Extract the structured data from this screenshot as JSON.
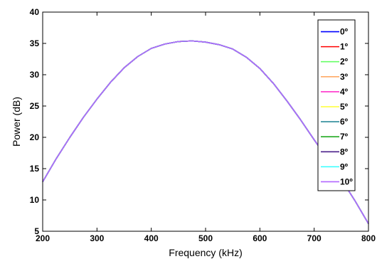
{
  "chart_data": {
    "type": "line",
    "title": "",
    "xlabel": "Frequency (kHz)",
    "ylabel": "Power (dB)",
    "xlim": [
      200,
      800
    ],
    "ylim": [
      5,
      40
    ],
    "xticks": [
      200,
      300,
      400,
      500,
      600,
      700,
      800
    ],
    "yticks": [
      5,
      10,
      15,
      20,
      25,
      30,
      35,
      40
    ],
    "grid": false,
    "legend_position": "top-right",
    "x": [
      200,
      225,
      250,
      275,
      300,
      325,
      350,
      375,
      400,
      425,
      450,
      475,
      500,
      525,
      550,
      575,
      600,
      625,
      650,
      675,
      700,
      725,
      750,
      775,
      800
    ],
    "series": [
      {
        "name": "0º",
        "color": "#0000ff",
        "values": [
          12.9,
          16.6,
          20.0,
          23.2,
          26.1,
          28.8,
          31.1,
          32.9,
          34.2,
          34.9,
          35.3,
          35.4,
          35.2,
          34.8,
          34.1,
          32.8,
          31.0,
          28.6,
          25.8,
          22.8,
          19.6,
          16.5,
          13.3,
          9.9,
          6.2
        ]
      },
      {
        "name": "1º",
        "color": "#ff0000",
        "values": [
          12.9,
          16.6,
          20.0,
          23.2,
          26.1,
          28.8,
          31.1,
          32.9,
          34.2,
          34.9,
          35.3,
          35.4,
          35.2,
          34.8,
          34.1,
          32.8,
          31.0,
          28.6,
          25.8,
          22.8,
          19.6,
          16.5,
          13.3,
          9.9,
          6.2
        ]
      },
      {
        "name": "2º",
        "color": "#66ff66",
        "values": [
          12.9,
          16.6,
          20.0,
          23.2,
          26.1,
          28.8,
          31.1,
          32.9,
          34.2,
          34.9,
          35.3,
          35.4,
          35.2,
          34.8,
          34.1,
          32.8,
          31.0,
          28.6,
          25.8,
          22.8,
          19.6,
          16.5,
          13.3,
          9.9,
          6.2
        ]
      },
      {
        "name": "3º",
        "color": "#ffaa66",
        "values": [
          12.9,
          16.6,
          20.0,
          23.2,
          26.1,
          28.8,
          31.1,
          32.9,
          34.2,
          34.9,
          35.3,
          35.4,
          35.2,
          34.8,
          34.1,
          32.8,
          31.0,
          28.6,
          25.8,
          22.8,
          19.6,
          16.5,
          13.3,
          9.9,
          6.2
        ]
      },
      {
        "name": "4º",
        "color": "#ff33cc",
        "values": [
          12.9,
          16.6,
          20.0,
          23.2,
          26.1,
          28.8,
          31.1,
          32.9,
          34.2,
          34.9,
          35.3,
          35.4,
          35.2,
          34.8,
          34.1,
          32.8,
          31.0,
          28.6,
          25.8,
          22.8,
          19.6,
          16.5,
          13.3,
          9.9,
          6.2
        ]
      },
      {
        "name": "5º",
        "color": "#ffff33",
        "values": [
          12.9,
          16.6,
          20.0,
          23.2,
          26.1,
          28.8,
          31.1,
          32.9,
          34.2,
          34.9,
          35.3,
          35.4,
          35.2,
          34.8,
          34.1,
          32.8,
          31.0,
          28.6,
          25.8,
          22.8,
          19.6,
          16.5,
          13.3,
          9.9,
          6.2
        ]
      },
      {
        "name": "6º",
        "color": "#2a8a99",
        "values": [
          12.9,
          16.6,
          20.0,
          23.2,
          26.1,
          28.8,
          31.1,
          32.9,
          34.2,
          34.9,
          35.3,
          35.4,
          35.2,
          34.8,
          34.1,
          32.8,
          31.0,
          28.6,
          25.8,
          22.8,
          19.6,
          16.5,
          13.3,
          9.9,
          6.2
        ]
      },
      {
        "name": "7º",
        "color": "#22aa22",
        "values": [
          12.9,
          16.6,
          20.0,
          23.2,
          26.1,
          28.8,
          31.1,
          32.9,
          34.2,
          34.9,
          35.3,
          35.4,
          35.2,
          34.8,
          34.1,
          32.8,
          31.0,
          28.6,
          25.8,
          22.8,
          19.6,
          16.5,
          13.3,
          9.9,
          6.2
        ]
      },
      {
        "name": "8º",
        "color": "#4b1f8a",
        "values": [
          12.9,
          16.6,
          20.0,
          23.2,
          26.1,
          28.8,
          31.1,
          32.9,
          34.2,
          34.9,
          35.3,
          35.4,
          35.2,
          34.8,
          34.1,
          32.8,
          31.0,
          28.6,
          25.8,
          22.8,
          19.6,
          16.5,
          13.3,
          9.9,
          6.2
        ]
      },
      {
        "name": "9º",
        "color": "#33ffff",
        "values": [
          12.9,
          16.6,
          20.0,
          23.2,
          26.1,
          28.8,
          31.1,
          32.9,
          34.2,
          34.9,
          35.3,
          35.4,
          35.2,
          34.8,
          34.1,
          32.8,
          31.0,
          28.6,
          25.8,
          22.8,
          19.6,
          16.5,
          13.3,
          9.9,
          6.2
        ]
      },
      {
        "name": "10º",
        "color": "#b266ff",
        "values": [
          12.9,
          16.6,
          20.0,
          23.2,
          26.1,
          28.8,
          31.1,
          32.9,
          34.2,
          34.9,
          35.3,
          35.4,
          35.2,
          34.8,
          34.1,
          32.8,
          31.0,
          28.6,
          25.8,
          22.8,
          19.6,
          16.5,
          13.3,
          9.9,
          6.2
        ]
      }
    ]
  }
}
